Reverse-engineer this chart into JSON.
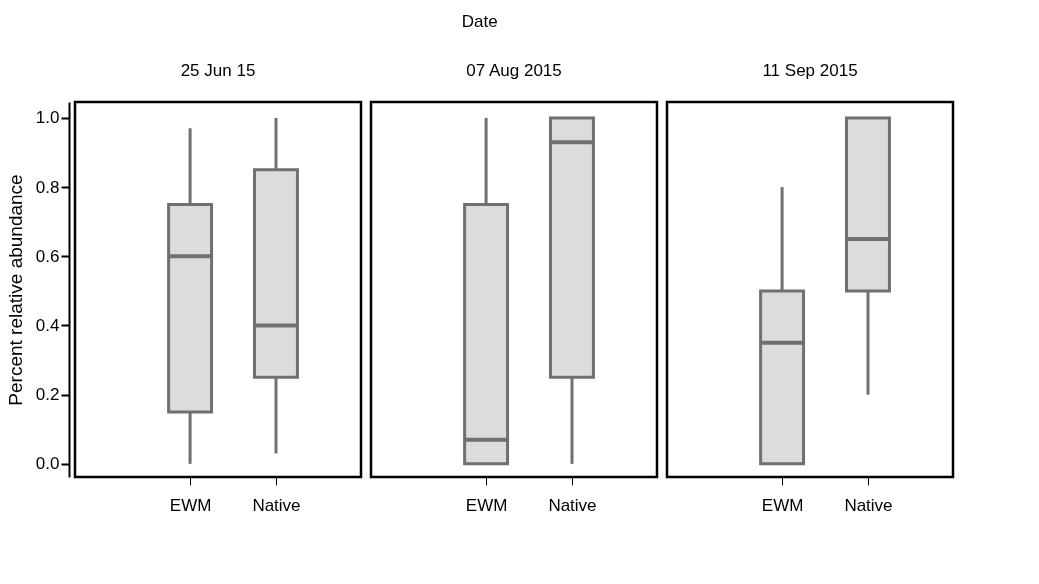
{
  "chart_data": [
    {
      "type": "box",
      "title": "25 Jun 15",
      "ylabel": "Percent relative abundance",
      "categories": [
        "EWM",
        "Native"
      ],
      "ylim": [
        -0.038,
        1.046
      ],
      "yticks": [
        {
          "value": 0,
          "label": "0.0"
        },
        0.2,
        0.4,
        0.6,
        0.8,
        {
          "value": 1,
          "label": "1.0"
        }
      ],
      "grid": false,
      "series": [
        {
          "color": "#dcdcdc",
          "boxes": [
            {
              "low": 0,
              "q1": 0.15,
              "median": 0.6,
              "q3": 0.75,
              "high": 0.97
            },
            {
              "low": 0.03,
              "q1": 0.25,
              "median": 0.4,
              "q3": 0.85,
              "high": 1.0
            }
          ]
        }
      ]
    },
    {
      "type": "box",
      "title": "07 Aug 2015",
      "annotations": [
        "Date"
      ],
      "categories": [
        "EWM",
        "Native"
      ],
      "ylim": [
        -0.038,
        1.046
      ],
      "tick_labels": "x",
      "grid": false,
      "series": [
        {
          "color": "#dcdcdc",
          "boxes": [
            {
              "low": 0,
              "q1": 0,
              "median": 0.07,
              "q3": 0.75,
              "high": 1.0
            },
            {
              "low": 0,
              "q1": 0.25,
              "median": 0.93,
              "q3": 1.0,
              "high": 1.0
            }
          ]
        }
      ]
    },
    {
      "type": "box",
      "title": "11 Sep 2015",
      "categories": [
        "EWM",
        "Native"
      ],
      "ylim": [
        -0.038,
        1.046
      ],
      "tick_labels": "x",
      "grid": false,
      "series": [
        {
          "color": "#dcdcdc",
          "boxes": [
            {
              "low": 0,
              "q1": 0,
              "median": 0.35,
              "q3": 0.5,
              "high": 0.8
            },
            {
              "low": 0.2,
              "q1": 0.5,
              "median": 0.65,
              "q3": 1.0,
              "high": 1.0
            }
          ]
        }
      ]
    }
  ]
}
